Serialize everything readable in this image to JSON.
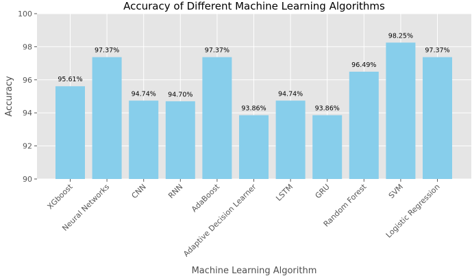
{
  "chart_data": {
    "type": "bar",
    "title": "Accuracy of Different Machine Learning Algorithms",
    "xlabel": "Machine Learning Algorithm",
    "ylabel": "Accuracy",
    "categories": [
      "XGboost",
      "Neural Networks",
      "CNN",
      "RNN",
      "AdaBoost",
      "Adaptive Decision Learner",
      "LSTM",
      "GRU",
      "Random Forest",
      "SVM",
      "Logistic Regression"
    ],
    "values": [
      95.61,
      97.37,
      94.74,
      94.7,
      97.37,
      93.86,
      94.74,
      93.86,
      96.49,
      98.25,
      97.37
    ],
    "data_labels": [
      "95.61%",
      "97.37%",
      "94.74%",
      "94.70%",
      "97.37%",
      "93.86%",
      "94.74%",
      "93.86%",
      "96.49%",
      "98.25%",
      "97.37%"
    ],
    "ylim": [
      90,
      100
    ],
    "yticks": [
      90,
      92,
      94,
      96,
      98,
      100
    ],
    "grid": true,
    "colors": {
      "bar": "#87ceeb",
      "background": "#e5e5e5",
      "grid": "#ffffff"
    }
  }
}
